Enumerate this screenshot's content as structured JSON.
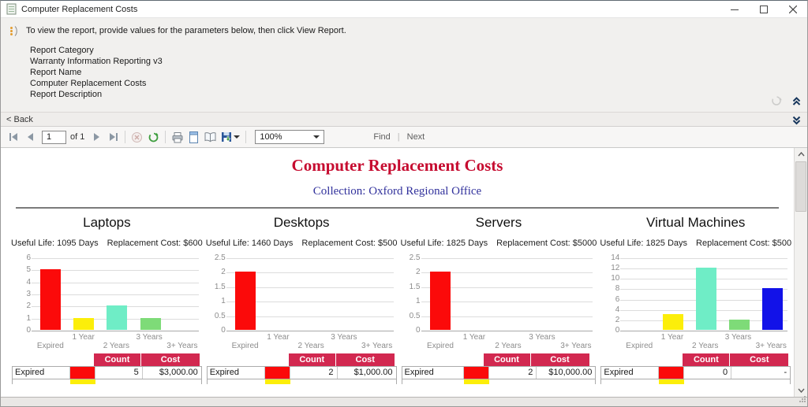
{
  "window": {
    "title": "Computer Replacement Costs",
    "controls": {
      "minimize": "minimize",
      "maximize": "maximize",
      "close": "close"
    }
  },
  "prompt_panel": {
    "message": "To view the report, provide values for the parameters below, then click View Report.",
    "fields": [
      {
        "label": "Report Category",
        "value": "Warranty Information Reporting v3"
      },
      {
        "label": "Report Name",
        "value": "Computer Replacement Costs"
      },
      {
        "label": "Report Description",
        "value": ""
      }
    ]
  },
  "back_bar": {
    "label": "< Back"
  },
  "viewer_toolbar": {
    "current_page": "1",
    "of_label": "of 1",
    "zoom_value": "100%",
    "find_label": "Find",
    "next_label": "Next",
    "icons": [
      "first-page-icon",
      "previous-page-icon",
      "next-page-icon",
      "last-page-icon",
      "stop-icon",
      "refresh-icon",
      "print-icon",
      "print-layout-icon",
      "page-setup-icon",
      "export-icon"
    ]
  },
  "report": {
    "title": "Computer Replacement Costs",
    "subtitle": "Collection: Oxford Regional Office",
    "title_color": "#C60C30",
    "subtitle_color": "#31319C",
    "table_header_color": "#D22850"
  },
  "chart_data": [
    {
      "type": "bar",
      "section_title": "Laptops",
      "useful_life": "Useful Life: 1095 Days",
      "replacement_cost": "Replacement Cost: $600",
      "categories": [
        "Expired",
        "1 Year",
        "2 Years",
        "3 Years",
        "3+ Years"
      ],
      "values": [
        5,
        1,
        2,
        1,
        0
      ],
      "bar_colors": [
        "#FB0A0A",
        "#FCEE0A",
        "#6FEDC6",
        "#7EDB78",
        "#1212E8"
      ],
      "ylim": [
        0,
        6
      ],
      "yticks": [
        6,
        5,
        4,
        3,
        2,
        1,
        0
      ],
      "grid": true,
      "legend": false,
      "table": {
        "columns": [
          "Count",
          "Cost"
        ],
        "row": {
          "label": "Expired",
          "swatch": "#FB0A0A",
          "count": "5",
          "cost": "$3,000.00"
        },
        "peek_swatch": "#FCEE0A"
      }
    },
    {
      "type": "bar",
      "section_title": "Desktops",
      "useful_life": "Useful Life: 1460 Days",
      "replacement_cost": "Replacement Cost: $500",
      "categories": [
        "Expired",
        "1 Year",
        "2 Years",
        "3 Years",
        "3+ Years"
      ],
      "values": [
        2,
        0,
        0,
        0,
        0
      ],
      "bar_colors": [
        "#FB0A0A",
        "#FCEE0A",
        "#6FEDC6",
        "#7EDB78",
        "#1212E8"
      ],
      "ylim": [
        0,
        2.5
      ],
      "yticks": [
        2.5,
        2,
        1.5,
        1,
        0.5,
        0
      ],
      "grid": true,
      "legend": false,
      "table": {
        "columns": [
          "Count",
          "Cost"
        ],
        "row": {
          "label": "Expired",
          "swatch": "#FB0A0A",
          "count": "2",
          "cost": "$1,000.00"
        },
        "peek_swatch": "#FCEE0A"
      }
    },
    {
      "type": "bar",
      "section_title": "Servers",
      "useful_life": "Useful Life: 1825 Days",
      "replacement_cost": "Replacement Cost: $5000",
      "categories": [
        "Expired",
        "1 Year",
        "2 Years",
        "3 Years",
        "3+ Years"
      ],
      "values": [
        2,
        0,
        0,
        0,
        0
      ],
      "bar_colors": [
        "#FB0A0A",
        "#FCEE0A",
        "#6FEDC6",
        "#7EDB78",
        "#1212E8"
      ],
      "ylim": [
        0,
        2.5
      ],
      "yticks": [
        2.5,
        2,
        1.5,
        1,
        0.5,
        0
      ],
      "grid": true,
      "legend": false,
      "table": {
        "columns": [
          "Count",
          "Cost"
        ],
        "row": {
          "label": "Expired",
          "swatch": "#FB0A0A",
          "count": "2",
          "cost": "$10,000.00"
        },
        "peek_swatch": "#FCEE0A"
      }
    },
    {
      "type": "bar",
      "section_title": "Virtual Machines",
      "useful_life": "Useful Life: 1825 Days",
      "replacement_cost": "Replacement Cost: $500",
      "categories": [
        "Expired",
        "1 Year",
        "2 Years",
        "3 Years",
        "3+ Years"
      ],
      "values": [
        0,
        3,
        12,
        2,
        8
      ],
      "bar_colors": [
        "#FB0A0A",
        "#FCEE0A",
        "#6FEDC6",
        "#7EDB78",
        "#1212E8"
      ],
      "ylim": [
        0,
        14
      ],
      "yticks": [
        14,
        12,
        10,
        8,
        6,
        4,
        2,
        0
      ],
      "grid": true,
      "legend": false,
      "table": {
        "columns": [
          "Count",
          "Cost"
        ],
        "row": {
          "label": "Expired",
          "swatch": "#FB0A0A",
          "count": "0",
          "cost": "-"
        },
        "peek_swatch": "#FCEE0A"
      }
    }
  ]
}
